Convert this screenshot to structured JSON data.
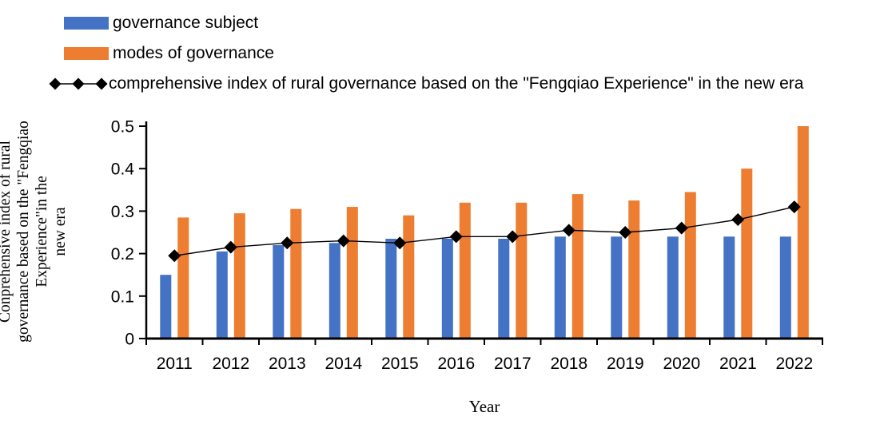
{
  "chart_data": {
    "type": "combo",
    "categories": [
      "2011",
      "2012",
      "2013",
      "2014",
      "2015",
      "2016",
      "2017",
      "2018",
      "2019",
      "2020",
      "2021",
      "2022"
    ],
    "series": [
      {
        "name": "governance subject",
        "type": "bar",
        "color": "#4472C4",
        "values": [
          0.15,
          0.205,
          0.22,
          0.225,
          0.235,
          0.235,
          0.235,
          0.24,
          0.24,
          0.24,
          0.24,
          0.24
        ]
      },
      {
        "name": "modes of governance",
        "type": "bar",
        "color": "#ED7D31",
        "values": [
          0.285,
          0.295,
          0.305,
          0.31,
          0.29,
          0.32,
          0.32,
          0.34,
          0.325,
          0.345,
          0.4,
          0.5
        ]
      },
      {
        "name": "comprehensive index of rural governance based on the \"Fengqiao Experience\" in the new era",
        "type": "line",
        "marker": "diamond",
        "color": "#000000",
        "values": [
          0.195,
          0.215,
          0.225,
          0.23,
          0.225,
          0.24,
          0.24,
          0.255,
          0.25,
          0.26,
          0.28,
          0.31
        ]
      }
    ],
    "xlabel": "Year",
    "ylabel": "Conprehensive index of rural\ngovernance based on the \"Fengqiao\nExperience\"in the\nnew era",
    "ylim": [
      0,
      0.5
    ],
    "yticks": [
      "0",
      "0.1",
      "0.2",
      "0.3",
      "0.4",
      "0.5"
    ],
    "grid": false,
    "legend_position": "top-left",
    "axis_color": "#000000",
    "text_color": "#000000"
  }
}
